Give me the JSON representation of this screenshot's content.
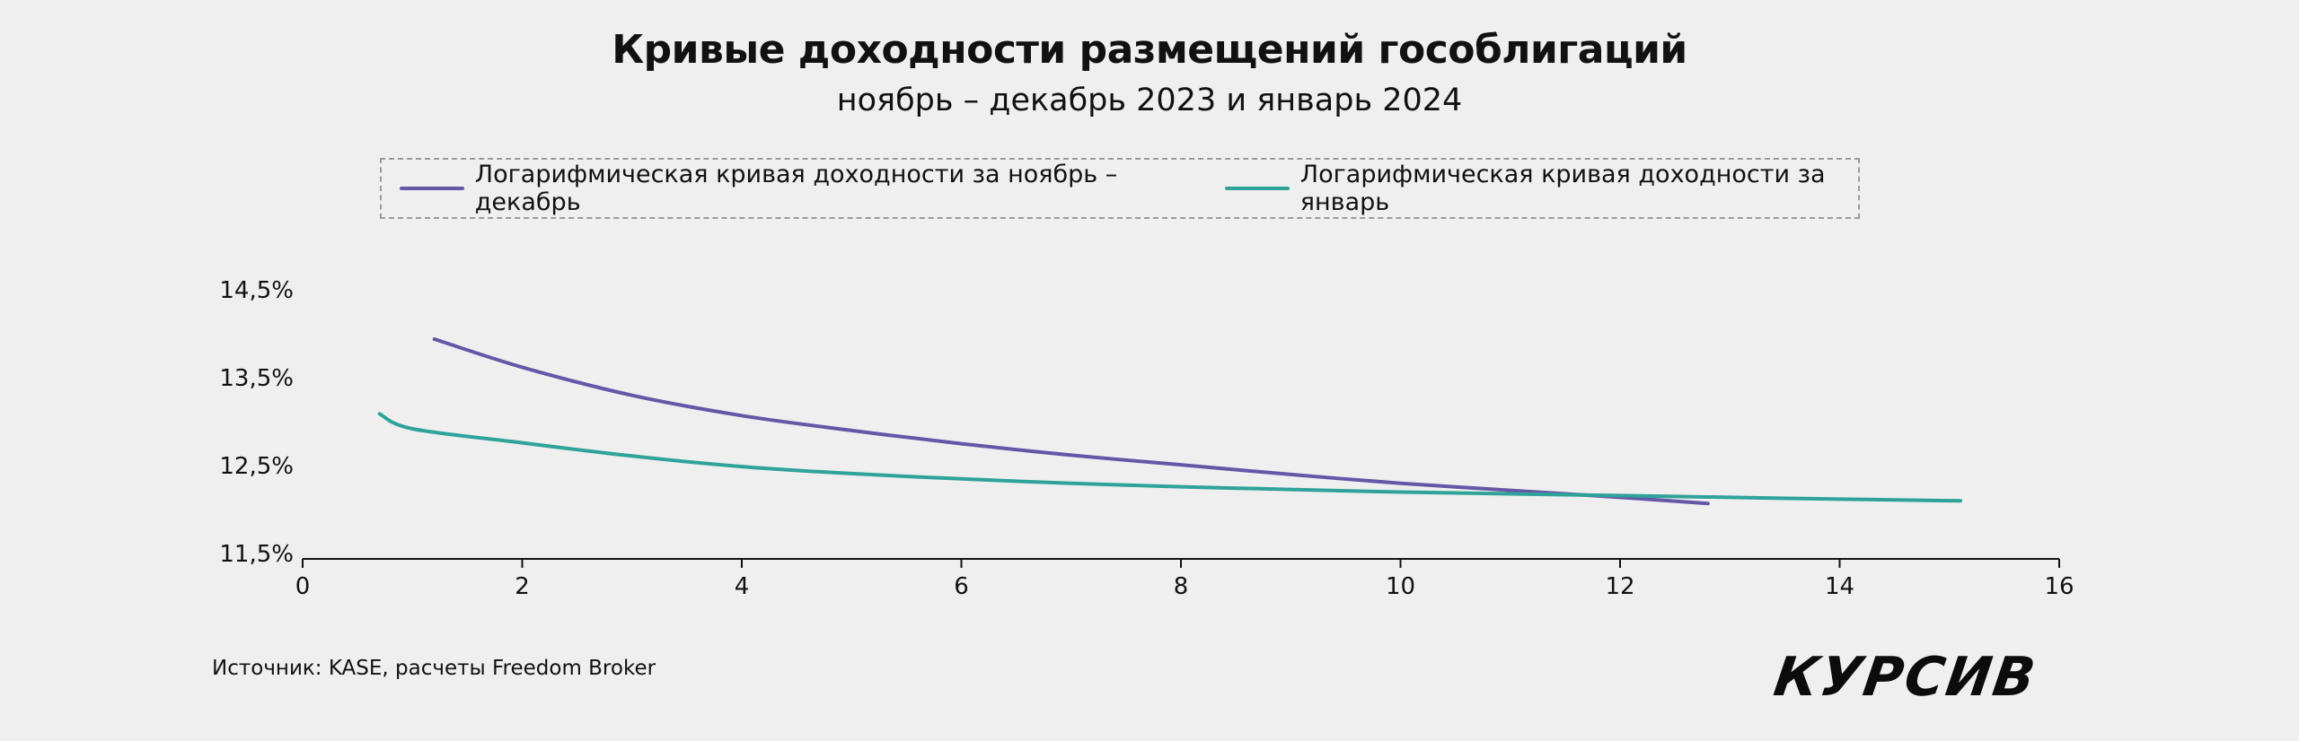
{
  "header": {
    "title": "Кривые доходности размещений гособлигаций",
    "subtitle": "ноябрь – декабрь 2023 и январь 2024"
  },
  "legend": {
    "items": [
      {
        "label": "Логарифмическая кривая доходности за ноябрь – декабрь",
        "color": "#6656a7"
      },
      {
        "label": "Логарифмическая кривая доходности за январь",
        "color": "#2fa39a"
      }
    ]
  },
  "footer": {
    "source": "Источник: KASE, расчеты Freedom Broker",
    "logo": "КУРСИВ"
  },
  "chart_data": {
    "type": "line",
    "title": "Кривые доходности размещений гособлигаций",
    "subtitle": "ноябрь – декабрь 2023 и январь 2024",
    "xlim": [
      0,
      16
    ],
    "ylim": [
      11.5,
      14.5
    ],
    "x_ticks": [
      0,
      2,
      4,
      6,
      8,
      10,
      12,
      14,
      16
    ],
    "y_ticks": [
      11.5,
      12.5,
      13.5,
      14.5
    ],
    "y_tick_labels": [
      "11,5%",
      "12,5%",
      "13,5%",
      "14,5%"
    ],
    "grid": false,
    "legend_position": "top",
    "series": [
      {
        "name": "Логарифмическая кривая доходности за ноябрь – декабрь",
        "color": "#6656a7",
        "x": [
          1.2,
          2,
          3,
          4,
          5,
          6,
          7,
          8,
          9,
          10,
          11,
          12,
          12.8
        ],
        "values": [
          14.0,
          13.68,
          13.36,
          13.13,
          12.96,
          12.81,
          12.68,
          12.57,
          12.46,
          12.36,
          12.28,
          12.2,
          12.13
        ]
      },
      {
        "name": "Логарифмическая кривая доходности за январь",
        "color": "#2fa39a",
        "x": [
          0.7,
          1,
          2,
          3,
          4,
          5,
          6,
          7,
          8,
          9,
          10,
          11,
          12,
          13,
          14,
          15.1
        ],
        "values": [
          13.15,
          12.98,
          12.82,
          12.67,
          12.55,
          12.47,
          12.41,
          12.36,
          12.32,
          12.29,
          12.26,
          12.24,
          12.22,
          12.2,
          12.18,
          12.16
        ]
      }
    ]
  }
}
